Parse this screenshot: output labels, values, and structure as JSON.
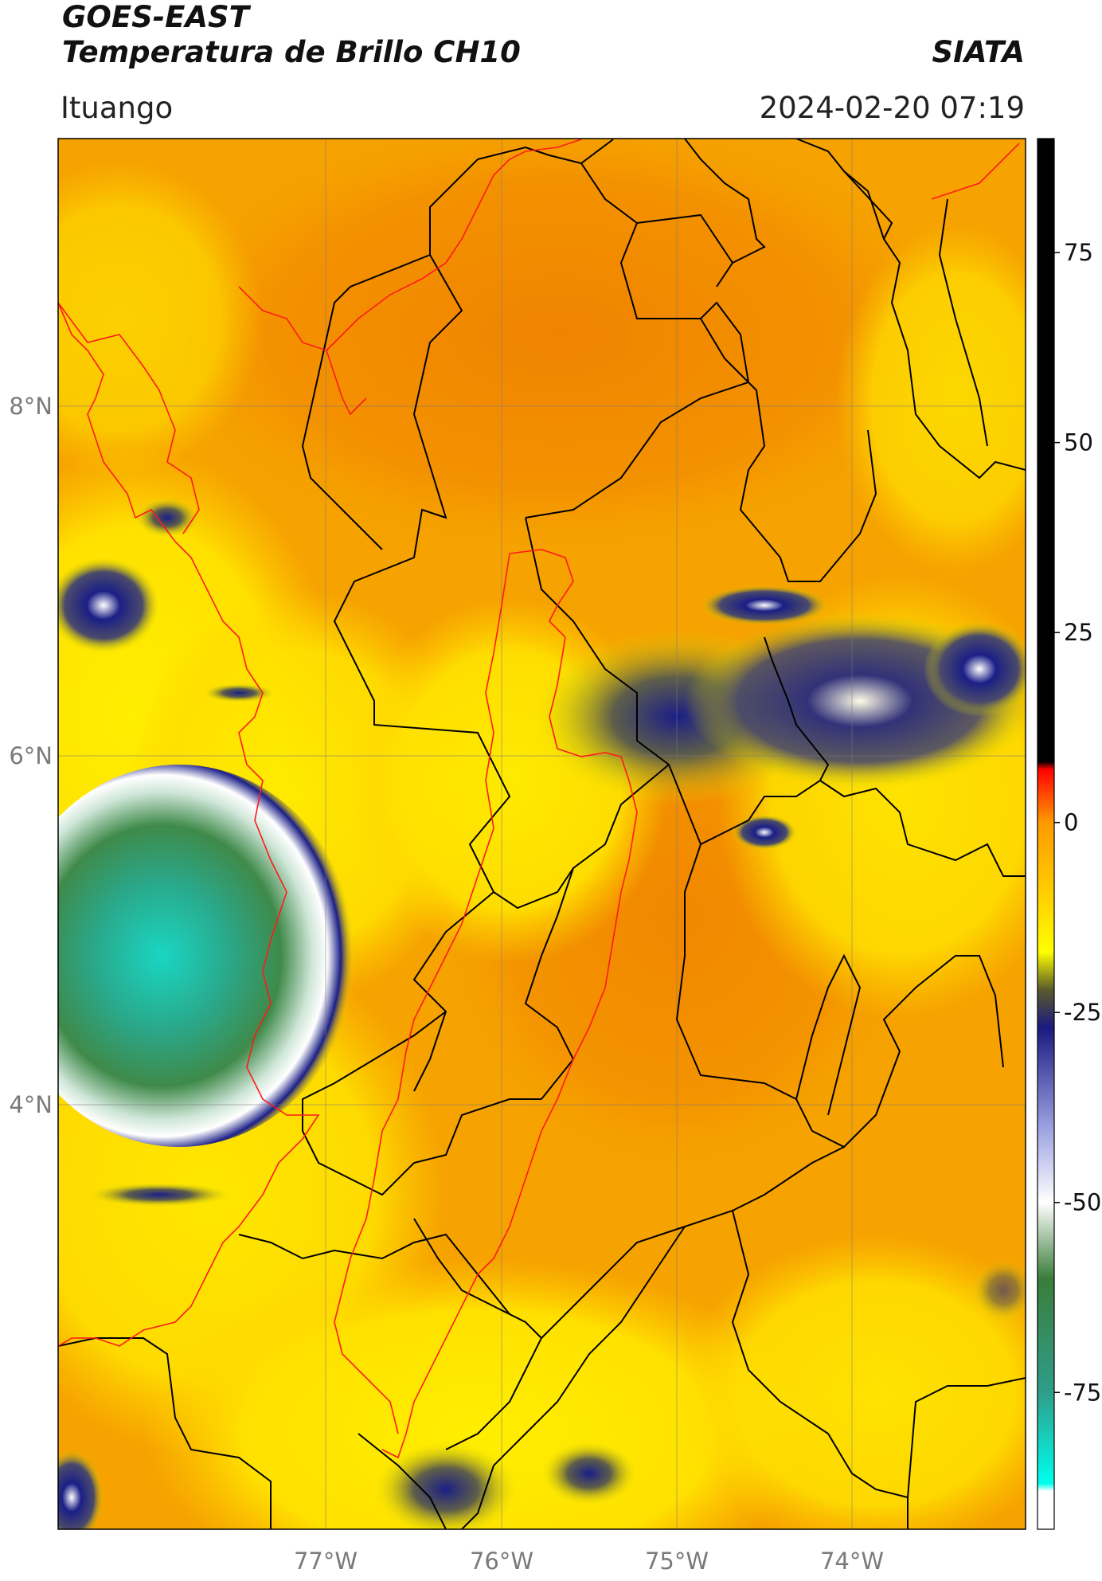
{
  "header": {
    "satellite": "GOES-EAST",
    "product": "Temperatura de Brillo CH10",
    "institution": "SIATA",
    "region": "Ituango",
    "timestamp": "2024-02-20 07:19"
  },
  "map": {
    "lon_ticks": [
      "77°W",
      "76°W",
      "75°W",
      "74°W"
    ],
    "lat_ticks": [
      "8°N",
      "6°N",
      "4°N"
    ],
    "colors": {
      "warm_bg": "#f5a300",
      "hot": "#f08a00",
      "mild": "#ffe600",
      "cold_blue": "#1b1f86",
      "very_cold": "#eef2f2",
      "coldest_green": "#2e8b57",
      "coldest_cyan": "#19d6c3",
      "boundary_black": "#000000",
      "boundary_red": "#ff1a1a"
    }
  },
  "colorbar": {
    "ticks": [
      "75",
      "50",
      "25",
      "0",
      "-25",
      "-50",
      "-75"
    ],
    "stops": [
      {
        "value": 90,
        "color": "#000000"
      },
      {
        "value": 8,
        "color": "#000000"
      },
      {
        "value": 7,
        "color": "#ff0000"
      },
      {
        "value": 0,
        "color": "#ff9a00"
      },
      {
        "value": -10,
        "color": "#ffd200"
      },
      {
        "value": -17,
        "color": "#ffff00"
      },
      {
        "value": -22,
        "color": "#5a5a2a"
      },
      {
        "value": -27,
        "color": "#1a1a80"
      },
      {
        "value": -40,
        "color": "#9aa0e0"
      },
      {
        "value": -50,
        "color": "#ffffff"
      },
      {
        "value": -60,
        "color": "#3a7d3a"
      },
      {
        "value": -75,
        "color": "#2e9e8a"
      },
      {
        "value": -87,
        "color": "#00ffee"
      },
      {
        "value": -88,
        "color": "#ffffff"
      },
      {
        "value": -93,
        "color": "#ffffff"
      }
    ]
  }
}
